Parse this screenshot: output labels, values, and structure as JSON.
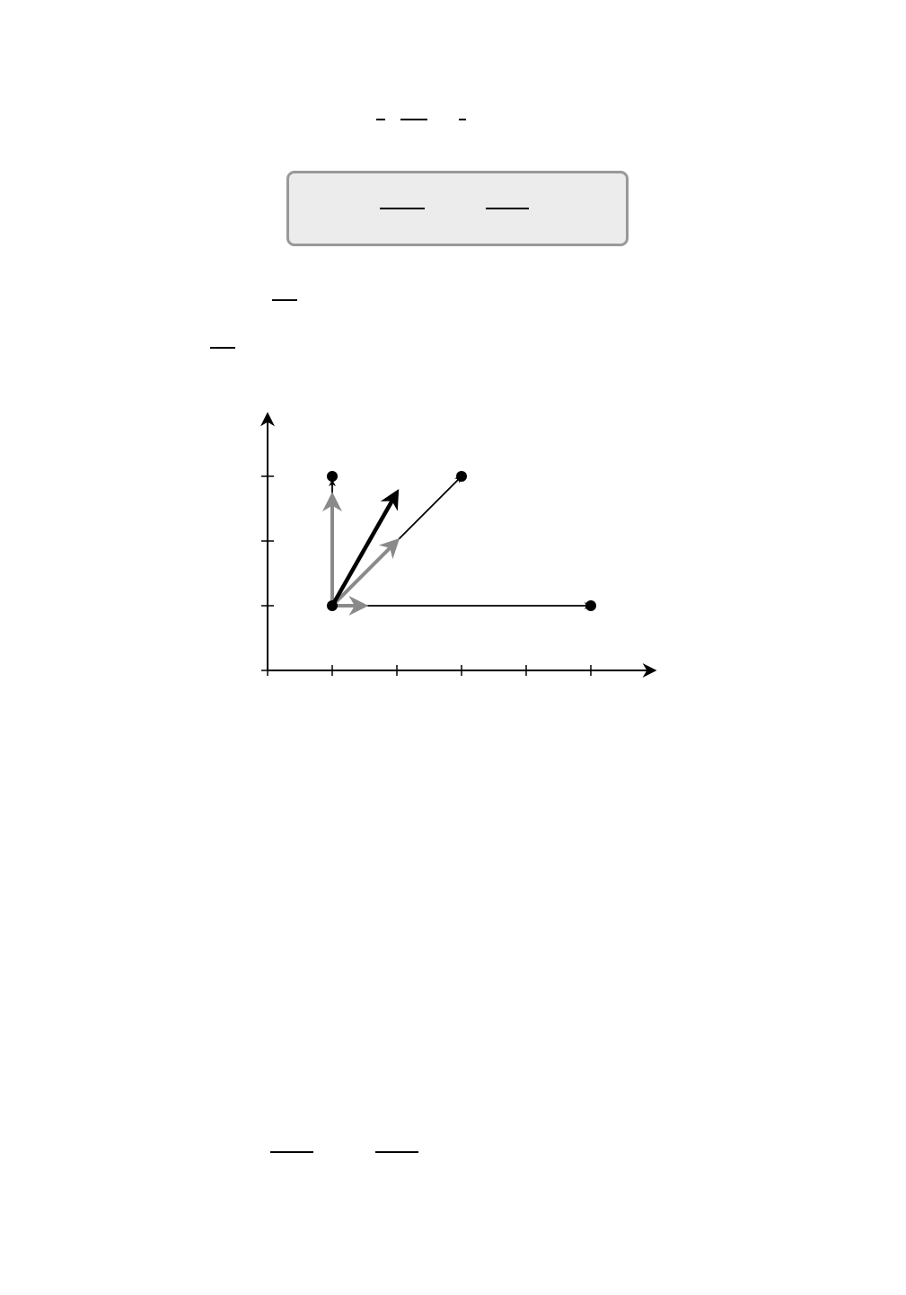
{
  "colors": {
    "background": "#ffffff",
    "box_fill": "#ececec",
    "box_border": "#999999",
    "grey_arrow": "#8a8a8a",
    "black": "#000000"
  },
  "diagram": {
    "x_axis": {
      "ticks": [
        0,
        1,
        2,
        3,
        4,
        5
      ],
      "max": 6
    },
    "y_axis": {
      "ticks": [
        0,
        1,
        2,
        3
      ],
      "max": 4
    },
    "origin": [
      1,
      1
    ],
    "points": [
      {
        "name": "point-upper-left",
        "x": 1,
        "y": 3
      },
      {
        "name": "point-upper-right",
        "x": 3,
        "y": 3
      },
      {
        "name": "point-right",
        "x": 5,
        "y": 1
      }
    ],
    "thin_arrows": [
      {
        "name": "thin-arrow-to-right-point",
        "from": [
          1,
          1
        ],
        "to": [
          5,
          1
        ]
      },
      {
        "name": "thin-arrow-to-upper-right-point",
        "from": [
          1,
          1
        ],
        "to": [
          3,
          3
        ]
      },
      {
        "name": "thin-arrow-to-upper-left-point",
        "from": [
          1,
          1
        ],
        "to": [
          1,
          3
        ]
      }
    ],
    "grey_arrows": [
      {
        "name": "grey-arrow-vertical",
        "from": [
          1,
          1
        ],
        "to": [
          1,
          2.7
        ]
      },
      {
        "name": "grey-arrow-diagonal",
        "from": [
          1,
          1
        ],
        "to": [
          2,
          2
        ]
      },
      {
        "name": "grey-arrow-horizontal",
        "from": [
          1,
          1
        ],
        "to": [
          1.5,
          1
        ]
      }
    ],
    "bold_arrows": [
      {
        "name": "bold-black-arrow",
        "from": [
          1,
          1
        ],
        "to": [
          2,
          2.75
        ]
      }
    ]
  }
}
